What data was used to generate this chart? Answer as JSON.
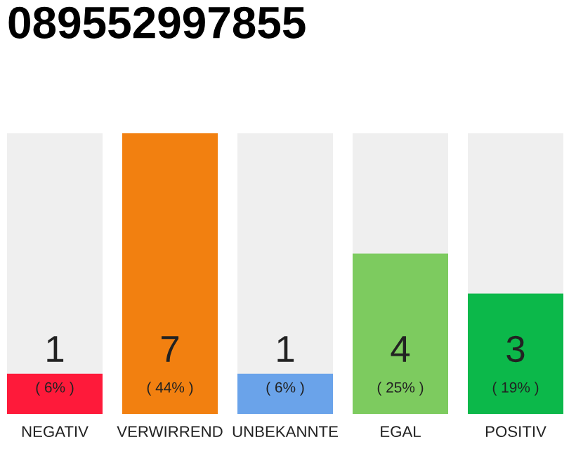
{
  "chart_data": {
    "type": "bar",
    "title": "089552997855",
    "categories": [
      "NEGATIV",
      "VERWIRREND",
      "UNBEKANNTE",
      "EGAL",
      "POSITIV"
    ],
    "values": [
      1,
      7,
      1,
      4,
      3
    ],
    "colors": [
      "#fe1a3a",
      "#f28010",
      "#6aa3ea",
      "#7dcb5f",
      "#0cb84a"
    ],
    "ylim": [
      0,
      7
    ],
    "tick_labels": "x",
    "data_labels": true,
    "annotations": [
      "( 6% )",
      "( 44% )",
      "( 6% )",
      "( 25% )",
      "( 19% )"
    ]
  }
}
